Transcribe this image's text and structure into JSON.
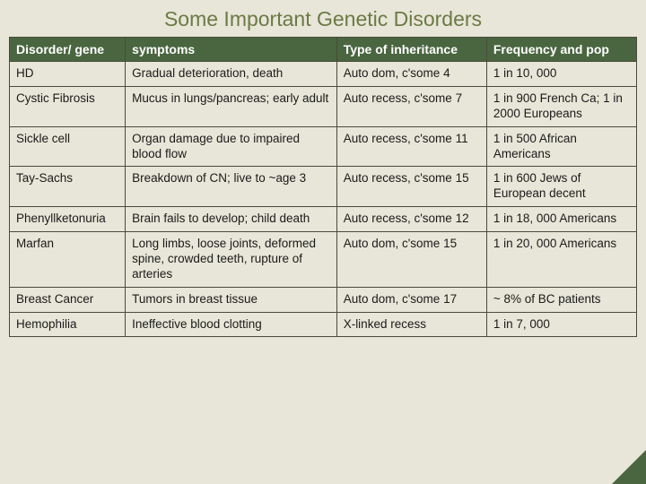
{
  "title": "Some Important Genetic Disorders",
  "table": {
    "type": "table",
    "header_bg": "#4a6640",
    "header_fg": "#ffffff",
    "cell_bg": "#e8e6d8",
    "cell_fg": "#1a1a1a",
    "border_color": "#4a4a3a",
    "font_family": "Arial",
    "header_fontsize": 14,
    "cell_fontsize": 13.5,
    "col_widths_pct": [
      17,
      31,
      22,
      22
    ],
    "columns": [
      "Disorder/ gene",
      "symptoms",
      "Type of inheritance",
      "Frequency and pop"
    ],
    "rows": [
      [
        "HD",
        "Gradual deterioration, death",
        "Auto dom, c'some 4",
        "1 in 10, 000"
      ],
      [
        "Cystic Fibrosis",
        "Mucus in lungs/pancreas; early adult",
        "Auto recess, c'some 7",
        "1 in 900 French Ca; 1 in 2000 Europeans"
      ],
      [
        "Sickle cell",
        "Organ damage due to impaired blood flow",
        "Auto recess, c'some 11",
        "1 in 500 African Americans"
      ],
      [
        "Tay-Sachs",
        "Breakdown of CN; live to ~age 3",
        "Auto recess, c'some 15",
        "1 in 600 Jews of European decent"
      ],
      [
        "Phenyllketonuria",
        "Brain fails to develop; child death",
        "Auto recess, c'some 12",
        "1 in 18, 000 Americans"
      ],
      [
        "Marfan",
        "Long limbs, loose joints, deformed spine, crowded teeth, rupture of arteries",
        "Auto dom, c'some 15",
        "1 in 20, 000 Americans"
      ],
      [
        "Breast Cancer",
        "Tumors in breast tissue",
        "Auto dom, c'some 17",
        "~ 8% of BC patients"
      ],
      [
        "Hemophilia",
        "Ineffective blood clotting",
        "X-linked recess",
        "1 in 7, 000"
      ]
    ]
  },
  "slide": {
    "background_color": "#e8e6d8",
    "title_color": "#6b7a45",
    "title_fontsize": 23,
    "corner_color": "#4a6640"
  }
}
